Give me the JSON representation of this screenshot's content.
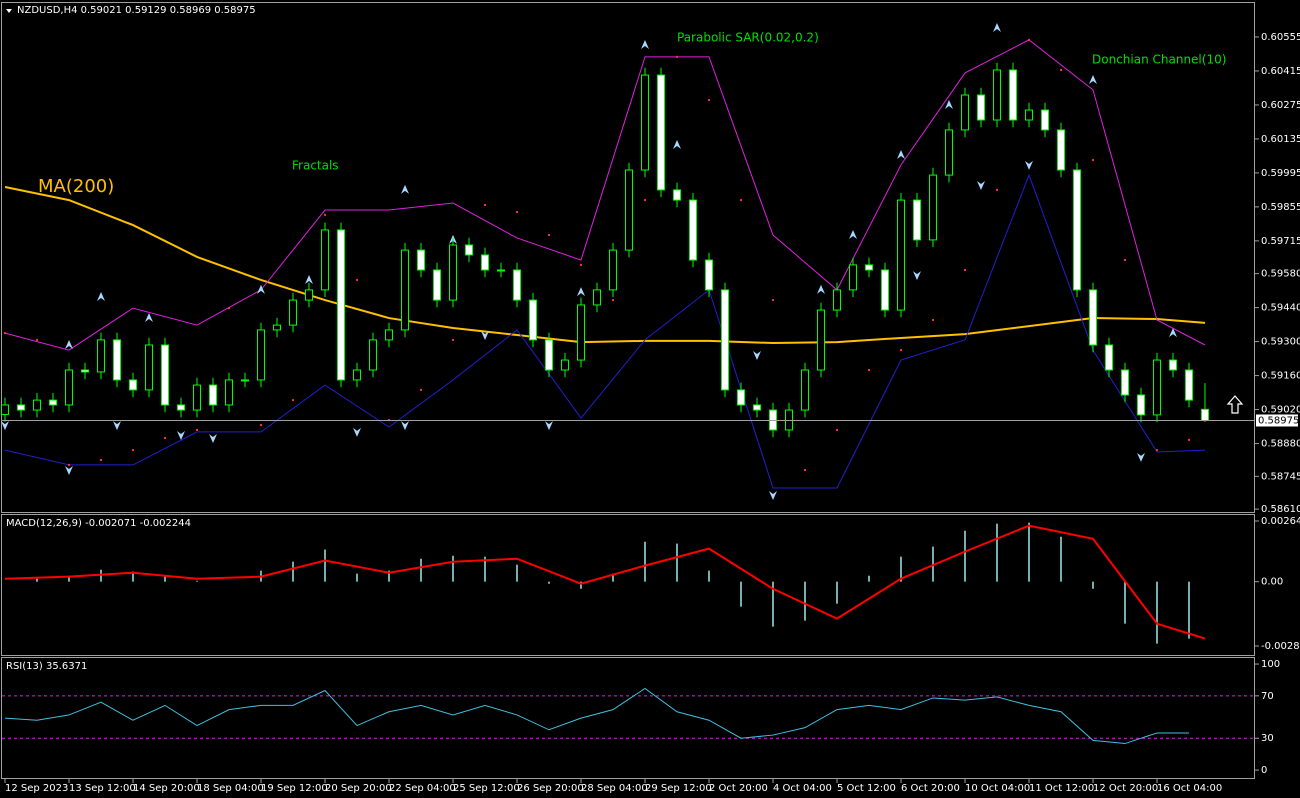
{
  "chart_data": [
    {
      "type": "candlestick",
      "title": "NZDUSD,H4  0.59021 0.59129 0.58969 0.58975",
      "categories": [
        "12 Sep 2023",
        null,
        null,
        null,
        "13 Sep 12:00",
        null,
        null,
        null,
        "14 Sep 20:00",
        null,
        null,
        null,
        "18 Sep 04:00",
        null,
        null,
        null,
        "19 Sep 12:00",
        null,
        null,
        null,
        "20 Sep 20:00",
        null,
        null,
        null,
        "22 Sep 04:00",
        null,
        null,
        null,
        "25 Sep 12:00",
        null,
        null,
        null,
        "26 Sep 20:00",
        null,
        null,
        null,
        "28 Sep 04:00",
        null,
        null,
        null,
        "29 Sep 12:00",
        null,
        null,
        null,
        "2 Oct 20:00",
        null,
        null,
        null,
        "4 Oct 04:00",
        null,
        null,
        null,
        "5 Oct 12:00",
        null,
        null,
        null,
        "6 Oct 20:00",
        null,
        null,
        null,
        "10 Oct 04:00",
        null,
        null,
        null,
        "11 Oct 12:00",
        null,
        null,
        null,
        "12 Oct 20:00",
        null,
        null,
        null,
        "16 Oct 04:00",
        null,
        null,
        null
      ],
      "open": [
        0.59,
        0.59039,
        0.59018,
        0.59059,
        0.59039,
        0.59183,
        0.59175,
        0.59307,
        0.59142,
        0.59101,
        0.59286,
        0.59039,
        0.59018,
        0.59121,
        0.59039,
        0.59142,
        0.59142,
        0.59348,
        0.59368,
        0.59471,
        0.59513,
        0.5976,
        0.59142,
        0.59183,
        0.59307,
        0.59348,
        0.59677,
        0.59595,
        0.59471,
        0.59698,
        0.59657,
        0.59595,
        0.59595,
        0.59471,
        0.59307,
        0.59183,
        0.59224,
        0.59451,
        0.59513,
        0.59677,
        0.60007,
        0.60398,
        0.59925,
        0.59883,
        0.59636,
        0.59513,
        0.59101,
        0.59039,
        0.59018,
        0.58936,
        0.59018,
        0.59183,
        0.5943,
        0.59513,
        0.59616,
        0.59595,
        0.5943,
        0.59883,
        0.59719,
        0.59986,
        0.60172,
        0.60316,
        0.60213,
        0.60419,
        0.60213,
        0.60254,
        0.60172,
        0.60007,
        0.59513,
        0.59286,
        0.59183,
        0.5908,
        0.58998,
        0.59224,
        0.59183,
        0.59021
      ],
      "high": [
        0.59069,
        0.59069,
        0.59089,
        0.59089,
        0.59213,
        0.59213,
        0.59337,
        0.59337,
        0.59172,
        0.59316,
        0.59316,
        0.59069,
        0.59151,
        0.59151,
        0.59172,
        0.59172,
        0.59378,
        0.59398,
        0.59501,
        0.59543,
        0.5979,
        0.5979,
        0.59213,
        0.59337,
        0.59378,
        0.59707,
        0.59707,
        0.59625,
        0.59728,
        0.59728,
        0.59687,
        0.59625,
        0.59625,
        0.59501,
        0.59337,
        0.59254,
        0.59481,
        0.59543,
        0.59707,
        0.60037,
        0.60428,
        0.60428,
        0.59955,
        0.59913,
        0.59666,
        0.59543,
        0.59131,
        0.59069,
        0.59048,
        0.59048,
        0.59213,
        0.5946,
        0.59543,
        0.59646,
        0.59646,
        0.59625,
        0.59913,
        0.59913,
        0.60016,
        0.60202,
        0.60346,
        0.60346,
        0.60449,
        0.60449,
        0.60284,
        0.60284,
        0.60202,
        0.60037,
        0.59543,
        0.59316,
        0.59213,
        0.5911,
        0.59254,
        0.59254,
        0.59213,
        0.59129
      ],
      "low": [
        0.5897,
        0.58988,
        0.58988,
        0.59009,
        0.59009,
        0.59145,
        0.59145,
        0.59112,
        0.59071,
        0.59071,
        0.59009,
        0.58988,
        0.58988,
        0.59009,
        0.59009,
        0.59112,
        0.59112,
        0.59318,
        0.59338,
        0.59441,
        0.59483,
        0.59112,
        0.59112,
        0.59153,
        0.59277,
        0.59318,
        0.59565,
        0.59441,
        0.59441,
        0.59627,
        0.59565,
        0.59565,
        0.59441,
        0.59277,
        0.59153,
        0.59153,
        0.59194,
        0.59421,
        0.59483,
        0.59647,
        0.59977,
        0.59895,
        0.59853,
        0.59606,
        0.59483,
        0.59071,
        0.59009,
        0.58988,
        0.58906,
        0.58906,
        0.58988,
        0.59153,
        0.594,
        0.59483,
        0.59565,
        0.594,
        0.594,
        0.59689,
        0.59689,
        0.59956,
        0.60142,
        0.60183,
        0.60183,
        0.60183,
        0.60183,
        0.60142,
        0.59977,
        0.59483,
        0.59256,
        0.59153,
        0.5905,
        0.58968,
        0.58968,
        0.59153,
        0.59029,
        0.58969
      ],
      "close": [
        0.59039,
        0.59018,
        0.59059,
        0.59039,
        0.59183,
        0.59175,
        0.59307,
        0.59142,
        0.59101,
        0.59286,
        0.59039,
        0.59018,
        0.59121,
        0.59039,
        0.59142,
        0.59142,
        0.59348,
        0.59368,
        0.59471,
        0.59513,
        0.5976,
        0.59142,
        0.59183,
        0.59307,
        0.59348,
        0.59677,
        0.59595,
        0.59471,
        0.59698,
        0.59657,
        0.59595,
        0.59595,
        0.59471,
        0.59307,
        0.59183,
        0.59224,
        0.59451,
        0.59513,
        0.59677,
        0.60007,
        0.60398,
        0.59925,
        0.59883,
        0.59636,
        0.59513,
        0.59101,
        0.59039,
        0.59018,
        0.58936,
        0.59018,
        0.59183,
        0.5943,
        0.59513,
        0.59616,
        0.59595,
        0.5943,
        0.59883,
        0.59719,
        0.59986,
        0.60172,
        0.60316,
        0.60213,
        0.60419,
        0.60213,
        0.60254,
        0.60172,
        0.60007,
        0.59513,
        0.59286,
        0.59183,
        0.5908,
        0.58998,
        0.59224,
        0.59183,
        0.59059,
        0.58975
      ],
      "up_color": "#000000",
      "down_color": "#ffffff",
      "wick_color": "#00ff00",
      "ylim": [
        0.58598,
        0.60695
      ],
      "yticks": [
        0.60555,
        0.60415,
        0.60275,
        0.60135,
        0.59995,
        0.59855,
        0.59715,
        {
          "value": 0.5958,
          "label": "0.59580"
        },
        {
          "value": 0.5944,
          "label": "0.59440"
        },
        {
          "value": 0.593,
          "label": "0.59300"
        },
        {
          "value": 0.5916,
          "label": "0.59160"
        },
        {
          "value": 0.5902,
          "label": "0.59020"
        },
        {
          "value": 0.5888,
          "label": "0.58880"
        },
        0.58745,
        {
          "value": 0.5861,
          "label": "0.58610"
        }
      ],
      "overlays": [
        {
          "name": "MA(200)",
          "type": "line",
          "color": "#ffc000",
          "x": [
            0,
            4,
            8,
            12,
            16,
            20,
            24,
            28,
            32,
            36,
            40,
            44,
            48,
            52,
            56,
            60,
            64,
            68,
            72,
            75
          ],
          "values": [
            0.59937,
            0.59883,
            0.5978,
            0.59649,
            0.59554,
            0.59471,
            0.59397,
            0.59356,
            0.59327,
            0.59298,
            0.59303,
            0.59303,
            0.59294,
            0.59298,
            0.59315,
            0.59331,
            0.59364,
            0.59397,
            0.59393,
            0.59377
          ]
        },
        {
          "name": "Donchian Channel(10)",
          "type": "channel",
          "upper_color": "#e020e0",
          "lower_color": "#2020d0",
          "x": [
            0,
            4,
            8,
            12,
            16,
            20,
            24,
            28,
            32,
            36,
            40,
            44,
            48,
            52,
            56,
            60,
            64,
            68,
            72,
            75
          ],
          "upper": [
            0.59335,
            0.59265,
            0.59438,
            0.59368,
            0.59513,
            0.59842,
            0.59842,
            0.59871,
            0.59727,
            0.59636,
            0.60473,
            0.60473,
            0.59739,
            0.59513,
            0.60028,
            0.60407,
            0.60543,
            0.60337,
            0.59389,
            0.59286
          ],
          "lower": [
            0.58853,
            0.58792,
            0.58792,
            0.58928,
            0.58928,
            0.59121,
            0.58948,
            0.59142,
            0.59348,
            0.58985,
            0.59307,
            0.59513,
            0.58697,
            0.58697,
            0.59224,
            0.59307,
            0.59986,
            0.59265,
            0.58845,
            0.58853
          ]
        },
        {
          "name": "Parabolic SAR(0.02,0.2)",
          "type": "dots",
          "color": "#ff3030",
          "x": [
            0,
            2,
            4,
            6,
            8,
            10,
            12,
            14,
            16,
            18,
            20,
            22,
            24,
            26,
            28,
            30,
            32,
            34,
            36,
            38,
            40,
            42,
            44,
            46,
            48,
            50,
            52,
            54,
            56,
            58,
            60,
            62,
            64,
            66,
            68,
            70,
            72,
            74
          ],
          "values": [
            0.59335,
            0.59307,
            0.58792,
            0.58812,
            0.58853,
            0.58903,
            0.58936,
            0.59438,
            0.58956,
            0.59059,
            0.59822,
            0.59554,
            0.58977,
            0.59101,
            0.59307,
            0.59863,
            0.59834,
            0.59739,
            0.59616,
            0.59471,
            0.59883,
            0.60473,
            0.60295,
            0.59883,
            0.59471,
            0.58771,
            0.58936,
            0.59183,
            0.59265,
            0.59389,
            0.59595,
            0.59925,
            0.60543,
            0.60419,
            0.60048,
            0.59636,
            0.58853,
            0.58895
          ]
        },
        {
          "name": "Fractals",
          "type": "fractals",
          "color": "#a8d8ff",
          "up_x": [
            4,
            6,
            9,
            16,
            19,
            25,
            28,
            36,
            40,
            42,
            51,
            53,
            56,
            59,
            62,
            68,
            73
          ],
          "up": [
            0.59286,
            0.59484,
            0.59397,
            0.59513,
            0.59554,
            0.59925,
            0.59719,
            0.59504,
            0.60522,
            0.6011,
            0.59513,
            0.59739,
            0.60069,
            0.60275,
            0.60592,
            0.60378,
            0.59335
          ],
          "down_x": [
            0,
            4,
            7,
            11,
            13,
            22,
            25,
            30,
            34,
            47,
            48,
            57,
            61,
            64,
            71
          ],
          "down": [
            0.58956,
            0.58771,
            0.58956,
            0.58915,
            0.58903,
            0.58928,
            0.58956,
            0.59327,
            0.58956,
            0.59245,
            0.58668,
            0.59574,
            0.59945,
            0.60028,
            0.58825
          ]
        }
      ]
    },
    {
      "type": "macd",
      "title": "MACD(12,26,9) -0.002071 -0.002244",
      "ylim": [
        -0.003196,
        0.002906
      ],
      "yticks": [
        0.002644,
        {
          "value": 0,
          "label": "0.00"
        },
        -0.002804
      ],
      "series": [
        {
          "type": "bar",
          "color": "#a0e8e8",
          "x": [
            0,
            2,
            4,
            6,
            8,
            10,
            12,
            14,
            16,
            18,
            20,
            22,
            24,
            26,
            28,
            30,
            32,
            34,
            36,
            38,
            40,
            42,
            44,
            46,
            48,
            50,
            52,
            54,
            56,
            58,
            60,
            62,
            64,
            66,
            68,
            70,
            72,
            74
          ],
          "values": [
            0,
            0.00013,
            0.00026,
            0.00052,
            0.00044,
            0.00022,
            4e-05,
            0,
            0.00048,
            0.00087,
            0.0014,
            0.00035,
            0.00048,
            0.001,
            0.00113,
            0.00109,
            0.00074,
            -9e-05,
            -0.00031,
            0.00035,
            0.00174,
            0.00166,
            0.00048,
            -0.00109,
            -0.00196,
            -0.0017,
            -0.00096,
            0.00026,
            0.00109,
            0.00153,
            0.00222,
            0.00253,
            0.00257,
            0.00196,
            -0.00031,
            -0.00183,
            -0.0027,
            -0.00248
          ]
        },
        {
          "type": "line",
          "color": "#ff0000",
          "x": [
            0,
            4,
            8,
            12,
            16,
            20,
            24,
            28,
            32,
            36,
            40,
            44,
            48,
            52,
            56,
            60,
            64,
            68,
            72,
            75
          ],
          "values": [
            0.00013,
            0.00022,
            0.00039,
            0.00013,
            0.00022,
            0.00092,
            0.00039,
            0.00087,
            0.001,
            -9e-05,
            0.0007,
            0.00144,
            -0.00031,
            -0.00161,
            0.00013,
            0.00131,
            0.00244,
            0.00187,
            -0.00183,
            -0.00248
          ]
        }
      ]
    },
    {
      "type": "line",
      "title": "RSI(13) 35.6371",
      "color": "#40c0e0",
      "level_color": "#e020e0",
      "ylim": [
        -7.5,
        105.7
      ],
      "yticks": [
        100,
        70,
        30,
        0
      ],
      "levels": [
        70,
        30
      ],
      "x": [
        0,
        2,
        4,
        6,
        8,
        10,
        12,
        14,
        16,
        18,
        20,
        22,
        24,
        26,
        28,
        30,
        32,
        34,
        36,
        38,
        40,
        42,
        44,
        46,
        48,
        50,
        52,
        54,
        56,
        58,
        60,
        62,
        64,
        66,
        68,
        70,
        72,
        74
      ],
      "values": [
        49,
        47,
        52,
        64,
        47,
        61,
        42,
        57,
        61,
        61,
        75,
        42,
        55,
        61,
        52,
        61,
        52,
        38,
        49,
        57,
        77,
        55,
        47,
        30,
        33,
        40,
        57,
        61,
        57,
        68,
        66,
        69,
        61,
        55,
        28,
        25,
        35,
        35
      ]
    }
  ]
}
